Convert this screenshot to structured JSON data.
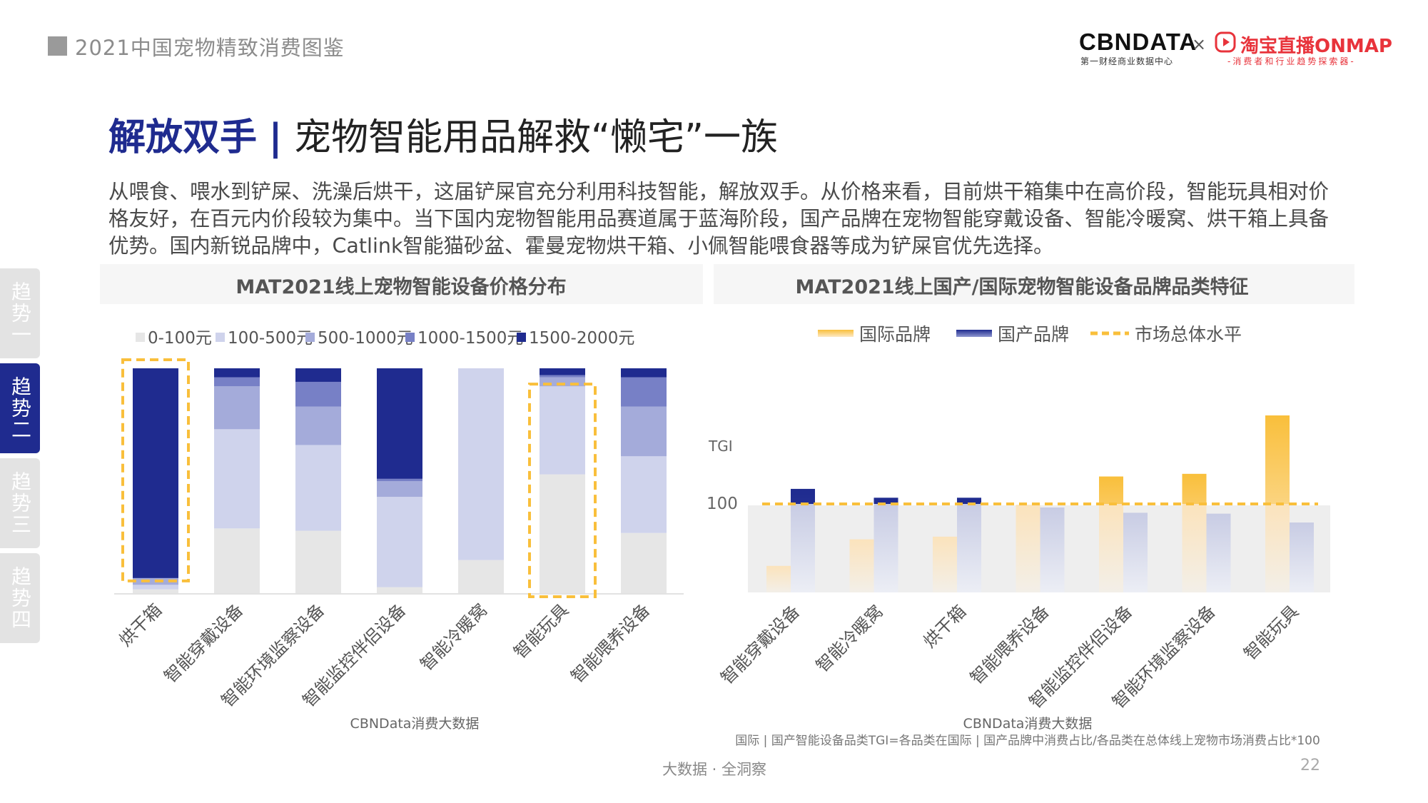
{
  "header": {
    "report_title": "2021中国宠物精致消费图鉴"
  },
  "logos": {
    "cbn": "CBNDATA",
    "cbn_sub": "第一财经商业数据中心",
    "times": "×",
    "taobao": "淘宝直播ONMAP",
    "taobao_sub": "-消费者和行业趋势探索器-"
  },
  "title": {
    "highlight": "解放双手",
    "separator": "|",
    "rest": "宠物智能用品解救“懒宅”一族"
  },
  "intro": "从喂食、喂水到铲屎、洗澡后烘干，这届铲屎官充分利用科技智能，解放双手。从价格来看，目前烘干箱集中在高价段，智能玩具相对价格友好，在百元内价段较为集中。当下国内宠物智能用品赛道属于蓝海阶段，国产品牌在宠物智能穿戴设备、智能冷暖窝、烘干箱上具备优势。国内新锐品牌中，Catlink智能猫砂盆、霍曼宠物烘干箱、小佩智能喂食器等成为铲屎官优先选择。",
  "side_tabs": [
    {
      "label": "趋势一",
      "active": false
    },
    {
      "label": "趋势二",
      "active": true
    },
    {
      "label": "趋势三",
      "active": false
    },
    {
      "label": "趋势四",
      "active": false
    }
  ],
  "chart_data": [
    {
      "type": "bar",
      "stacked": true,
      "percent": true,
      "title": "MAT2021线上宠物智能设备价格分布",
      "categories": [
        "烘干箱",
        "智能穿戴设备",
        "智能环境监察设备",
        "智能监控伴侣设备",
        "智能冷暖窝",
        "智能玩具",
        "智能喂养设备"
      ],
      "series": [
        {
          "name": "0-100元",
          "color": "#e6e6e6",
          "values": [
            2,
            29,
            28,
            3,
            15,
            53,
            27
          ]
        },
        {
          "name": "100-500元",
          "color": "#cfd3ec",
          "values": [
            2,
            44,
            38,
            40,
            85,
            39,
            34
          ]
        },
        {
          "name": "500-1000元",
          "color": "#a4abda",
          "values": [
            3,
            19,
            17,
            7,
            0,
            4,
            22
          ]
        },
        {
          "name": "1000-1500元",
          "color": "#7780c6",
          "values": [
            0,
            4,
            11,
            1,
            0,
            1,
            13
          ]
        },
        {
          "name": "1500-2000元",
          "color": "#1f2b8f",
          "values": [
            93,
            4,
            6,
            49,
            0,
            3,
            4
          ]
        }
      ],
      "highlighted_categories": [
        "烘干箱",
        "智能玩具"
      ],
      "legend_position": "top",
      "source": "CBNData消费大数据"
    },
    {
      "type": "bar",
      "title": "MAT2021线上国产/国际宠物智能设备品牌品类特征",
      "ylabel": "TGI",
      "reference_value": 100,
      "reference_label": "100",
      "categories": [
        "智能穿戴设备",
        "智能冷暖窝",
        "烘干箱",
        "智能喂养设备",
        "智能监控伴侣设备",
        "智能环境监察设备",
        "智能玩具"
      ],
      "series": [
        {
          "name": "国际品牌",
          "color": "#f9bf3b",
          "values": [
            30,
            60,
            63,
            99,
            131,
            134,
            200
          ]
        },
        {
          "name": "国产品牌",
          "color": "#1f2b8f",
          "values": [
            117,
            107,
            107,
            96,
            90,
            89,
            79
          ]
        },
        {
          "name": "市场总体水平",
          "color": "#f9bf3b",
          "style": "dashed",
          "value": 100
        }
      ],
      "legend_position": "top",
      "source": "CBNData消费大数据",
      "footnote": "国际 | 国产智能设备品类TGI=各品类在国际 | 国产品牌中消费占比/各品类在总体线上宠物市场消费占比*100"
    }
  ],
  "footer": {
    "center": "大数据 · 全洞察",
    "page": "22"
  }
}
